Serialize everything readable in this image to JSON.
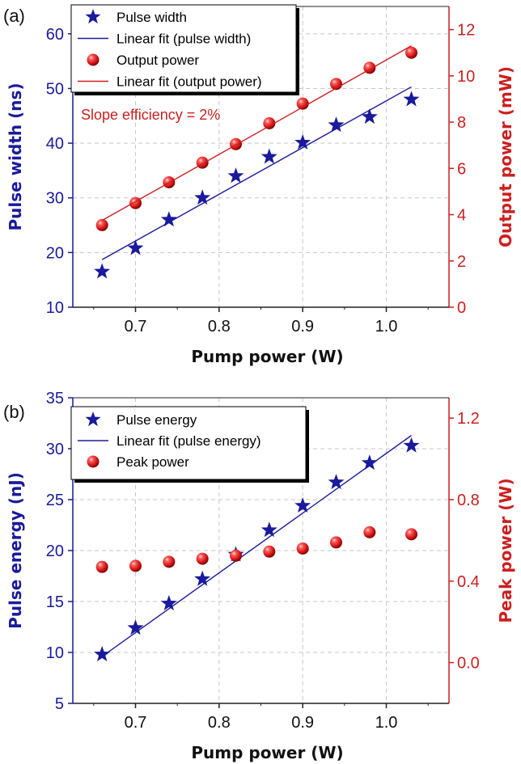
{
  "colors": {
    "blue": "#1a1a9c",
    "red": "#cc1f1f",
    "grid": "#c8c8c8",
    "axis": "#222222"
  },
  "chart_data": [
    {
      "type": "scatter",
      "panel_label": "(a)",
      "xlabel": "Pump power (W)",
      "ylabel_left": "Pulse width (ns)",
      "ylabel_right": "Output power (mW)",
      "xlim": [
        0.625,
        1.075
      ],
      "ylim_left": [
        10,
        65
      ],
      "ylim_right": [
        0,
        13
      ],
      "xticks": [
        "0.7",
        "0.8",
        "0.9",
        "1.0"
      ],
      "yticks_left": [
        "10",
        "20",
        "30",
        "40",
        "50",
        "60"
      ],
      "yticks_right": [
        "0",
        "2",
        "4",
        "6",
        "8",
        "10",
        "12"
      ],
      "grid": true,
      "legend_position": "top-left",
      "annotation": "Slope efficiency = 2%",
      "series": [
        {
          "name": "Pulse width",
          "kind": "points",
          "marker": "star",
          "axis": "left",
          "color": "blue",
          "x": [
            0.66,
            0.7,
            0.74,
            0.78,
            0.82,
            0.86,
            0.9,
            0.94,
            0.98,
            1.03
          ],
          "y": [
            16.5,
            20.8,
            26.0,
            30.0,
            34.0,
            37.5,
            40.1,
            43.3,
            44.8,
            48.0
          ]
        },
        {
          "name": "Linear fit (pulse width)",
          "kind": "line",
          "axis": "left",
          "color": "blue",
          "x": [
            0.66,
            1.03
          ],
          "y": [
            18.7,
            50.3
          ]
        },
        {
          "name": "Output power",
          "kind": "points",
          "marker": "sphere",
          "axis": "right",
          "color": "red",
          "x": [
            0.66,
            0.7,
            0.74,
            0.78,
            0.82,
            0.86,
            0.9,
            0.94,
            0.98,
            1.03
          ],
          "y": [
            3.55,
            4.5,
            5.4,
            6.25,
            7.05,
            7.95,
            8.8,
            9.65,
            10.35,
            11.0
          ]
        },
        {
          "name": "Linear fit (output power)",
          "kind": "line",
          "axis": "right",
          "color": "red",
          "x": [
            0.66,
            1.03
          ],
          "y": [
            3.75,
            11.3
          ]
        }
      ]
    },
    {
      "type": "scatter",
      "panel_label": "(b)",
      "xlabel": "Pump power (W)",
      "ylabel_left": "Pulse energy (nJ)",
      "ylabel_right": "Peak power (W)",
      "xlim": [
        0.625,
        1.075
      ],
      "ylim_left": [
        5,
        35
      ],
      "ylim_right": [
        -0.2,
        1.3
      ],
      "xticks": [
        "0.7",
        "0.8",
        "0.9",
        "1.0"
      ],
      "yticks_left": [
        "5",
        "10",
        "15",
        "20",
        "25",
        "30",
        "35"
      ],
      "yticks_right": [
        "0.0",
        "0.4",
        "0.8",
        "1.2"
      ],
      "grid": true,
      "legend_position": "top-left",
      "series": [
        {
          "name": "Pulse energy",
          "kind": "points",
          "marker": "star",
          "axis": "left",
          "color": "blue",
          "x": [
            0.66,
            0.7,
            0.74,
            0.78,
            0.82,
            0.86,
            0.9,
            0.94,
            0.98,
            1.03
          ],
          "y": [
            9.8,
            12.4,
            14.8,
            17.2,
            19.6,
            22.0,
            24.4,
            26.7,
            28.6,
            30.3
          ]
        },
        {
          "name": "Linear fit (pulse energy)",
          "kind": "line",
          "axis": "left",
          "color": "blue",
          "x": [
            0.66,
            1.03
          ],
          "y": [
            9.6,
            31.3
          ]
        },
        {
          "name": "Peak power",
          "kind": "points",
          "marker": "sphere",
          "axis": "right",
          "color": "red",
          "x": [
            0.66,
            0.7,
            0.74,
            0.78,
            0.82,
            0.86,
            0.9,
            0.94,
            0.98,
            1.03
          ],
          "y": [
            0.47,
            0.475,
            0.495,
            0.51,
            0.525,
            0.545,
            0.56,
            0.59,
            0.64,
            0.63
          ]
        }
      ]
    }
  ]
}
